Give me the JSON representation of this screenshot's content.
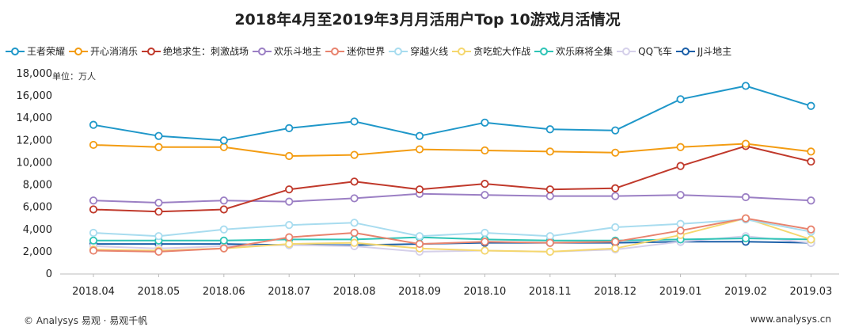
{
  "chart_data": {
    "type": "line",
    "title": "2018年4月至2019年3月月活用户Top 10游戏月活情况",
    "unit": "单位：万人",
    "categories": [
      "2018.04",
      "2018.05",
      "2018.06",
      "2018.07",
      "2018.08",
      "2018.09",
      "2018.10",
      "2018.11",
      "2018.12",
      "2019.01",
      "2019.02",
      "2019.03"
    ],
    "ylim": [
      0,
      18000
    ],
    "yticks": [
      "0",
      "2,000",
      "4,000",
      "6,000",
      "8,000",
      "10,000",
      "12,000",
      "14,000",
      "16,000",
      "18,000"
    ],
    "series": [
      {
        "name": "王者荣耀",
        "color": "#1f97c9",
        "values": [
          13400,
          12400,
          12000,
          13100,
          13700,
          12400,
          13600,
          13000,
          12900,
          15700,
          16900,
          15100
        ]
      },
      {
        "name": "开心消消乐",
        "color": "#f39c12",
        "values": [
          11600,
          11400,
          11400,
          10600,
          10700,
          11200,
          11100,
          11000,
          10900,
          11400,
          11700,
          11000
        ]
      },
      {
        "name": "绝地求生：刺激战场",
        "color": "#c0392b",
        "values": [
          5800,
          5600,
          5800,
          7600,
          8300,
          7600,
          8100,
          7600,
          7700,
          9700,
          11500,
          10100
        ]
      },
      {
        "name": "欢乐斗地主",
        "color": "#9b7fc4",
        "values": [
          6600,
          6400,
          6600,
          6500,
          6800,
          7200,
          7100,
          7000,
          7000,
          7100,
          6900,
          6600
        ]
      },
      {
        "name": "迷你世界",
        "color": "#e8836e",
        "values": [
          2100,
          2000,
          2300,
          3300,
          3700,
          2700,
          2900,
          2800,
          2900,
          3900,
          5000,
          4000
        ]
      },
      {
        "name": "穿越火线",
        "color": "#a8dcef",
        "values": [
          3700,
          3400,
          4000,
          4400,
          4600,
          3400,
          3700,
          3400,
          4200,
          4500,
          4900,
          3800
        ]
      },
      {
        "name": "贪吃蛇大作战",
        "color": "#f5d76e",
        "values": [
          2200,
          2100,
          2300,
          2700,
          2800,
          2300,
          2100,
          2000,
          2300,
          3500,
          5000,
          3100
        ]
      },
      {
        "name": "欢乐麻将全集",
        "color": "#2ec4b6",
        "values": [
          3000,
          3000,
          3000,
          3100,
          3100,
          3300,
          3100,
          3000,
          3000,
          3100,
          3200,
          3100
        ]
      },
      {
        "name": "QQ飞车",
        "color": "#d5d0ea",
        "values": [
          2500,
          2300,
          2500,
          2600,
          2500,
          2000,
          2100,
          2000,
          2200,
          2900,
          3400,
          2800
        ]
      },
      {
        "name": "JJ斗地主",
        "color": "#1b5fa8",
        "values": [
          2700,
          2700,
          2700,
          2600,
          2600,
          2700,
          2800,
          2800,
          2800,
          2900,
          2900,
          2800
        ]
      }
    ]
  },
  "footer": {
    "left": "© Analysys 易观 · 易观千帆",
    "right": "www.analysys.cn"
  }
}
